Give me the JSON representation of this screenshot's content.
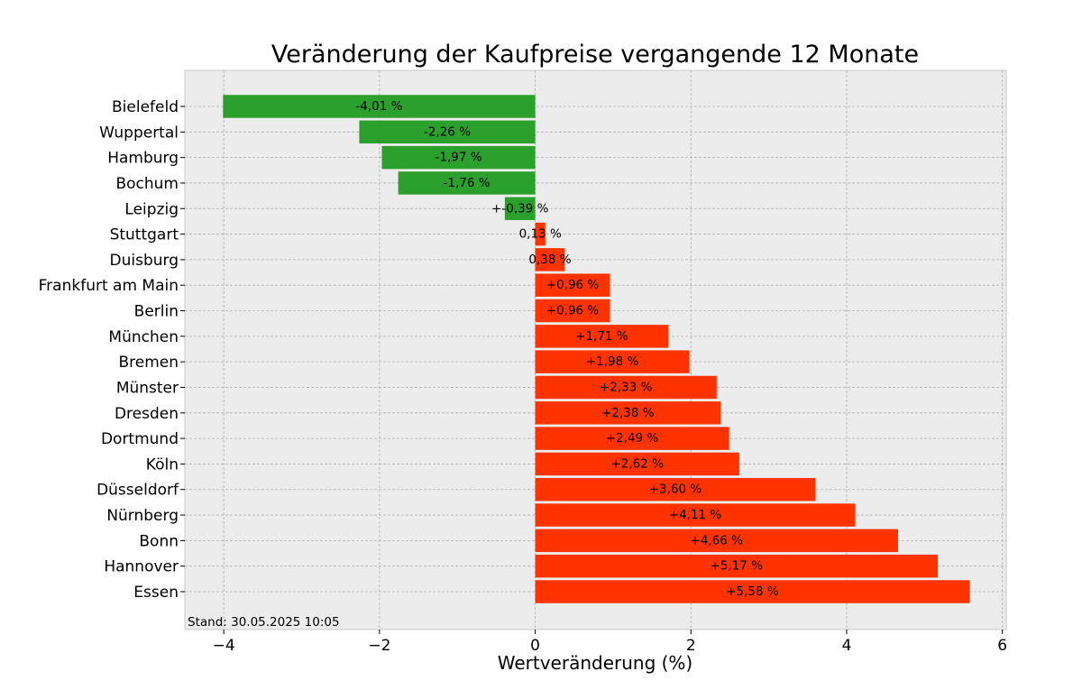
{
  "chart_data": {
    "type": "bar",
    "orientation": "horizontal",
    "title": "Veränderung der Kaufpreise vergangende 12 Monate",
    "xlabel": "Wertveränderung (%)",
    "ylabel": "",
    "xlim": [
      -4.5,
      6.05
    ],
    "xticks": [
      -4,
      -2,
      0,
      2,
      4,
      6
    ],
    "xtick_labels": [
      "−4",
      "−2",
      "0",
      "2",
      "4",
      "6"
    ],
    "grid": true,
    "categories": [
      "Bielefeld",
      "Wuppertal",
      "Hamburg",
      "Bochum",
      "Leipzig",
      "Stuttgart",
      "Duisburg",
      "Frankfurt am Main",
      "Berlin",
      "München",
      "Bremen",
      "Münster",
      "Dresden",
      "Dortmund",
      "Köln",
      "Düsseldorf",
      "Nürnberg",
      "Bonn",
      "Hannover",
      "Essen"
    ],
    "values": [
      -4.01,
      -2.26,
      -1.97,
      -1.76,
      -0.39,
      0.13,
      0.38,
      0.96,
      0.96,
      1.71,
      1.98,
      2.33,
      2.38,
      2.49,
      2.62,
      3.6,
      4.11,
      4.66,
      5.17,
      5.58
    ],
    "data_labels": [
      "-4,01 %",
      "-2,26 %",
      "-1,97 %",
      "-1,76 %",
      "+-0,39 %",
      "0,13 %",
      "0,38 %",
      "+0,96 %",
      "+0,96 %",
      "+1,71 %",
      "+1,98 %",
      "+2,33 %",
      "+2,38 %",
      "+2,49 %",
      "+2,62 %",
      "+3,60 %",
      "+4,11 %",
      "+4,66 %",
      "+5,17 %",
      "+5,58 %"
    ],
    "colors": {
      "negative": "#2ca02c",
      "positive": "#ff3300",
      "plot_background": "#ececec",
      "grid": "#b0b0b0"
    },
    "annotation": "Stand: 30.05.2025 10:05"
  }
}
